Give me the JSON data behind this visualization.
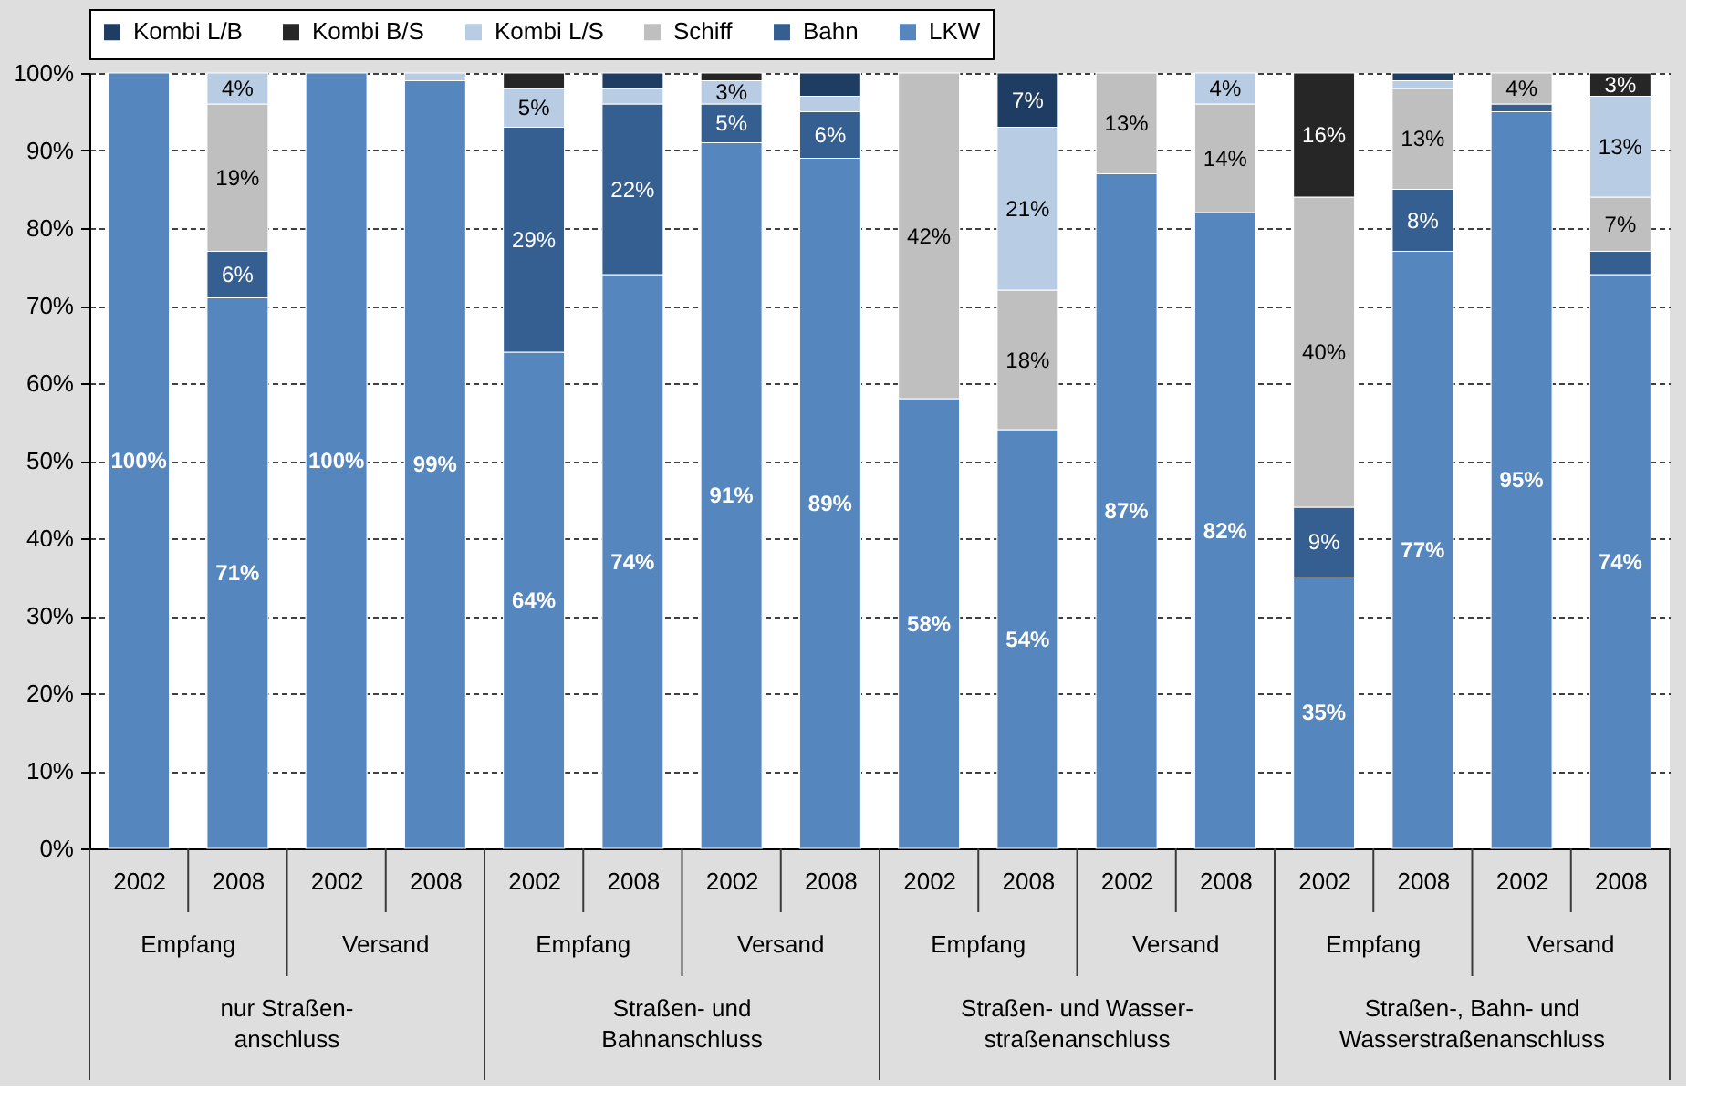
{
  "chart_data": {
    "type": "bar",
    "stacked": true,
    "categories": [
      "2002",
      "2008",
      "2002",
      "2008",
      "2002",
      "2008",
      "2002",
      "2008",
      "2002",
      "2008",
      "2002",
      "2008",
      "2002",
      "2008",
      "2002",
      "2008"
    ],
    "annotations": [
      "Empfang",
      "Versand",
      "Empfang",
      "Versand",
      "Empfang",
      "Versand",
      "Empfang",
      "Versand",
      "nur Straßen-\nanschluss",
      "Straßen- und\nBahnanschluss",
      "Straßen- und Wasser-\nstraßenanschluss",
      "Straßen-, Bahn- und\nWasserstraßenanschluss"
    ],
    "ylim": [
      0,
      100
    ],
    "yticks": [
      {
        "value": 0,
        "label": "0%"
      },
      {
        "value": 10,
        "label": "10%"
      },
      {
        "value": 20,
        "label": "20%"
      },
      {
        "value": 30,
        "label": "30%"
      },
      {
        "value": 40,
        "label": "40%"
      },
      {
        "value": 50,
        "label": "50%"
      },
      {
        "value": 60,
        "label": "60%"
      },
      {
        "value": 70,
        "label": "70%"
      },
      {
        "value": 80,
        "label": "80%"
      },
      {
        "value": 90,
        "label": "90%"
      },
      {
        "value": 100,
        "label": "100%"
      }
    ],
    "grid": "y",
    "legend": "top",
    "series": [
      {
        "name": "LKW",
        "color": "#5586be",
        "values": [
          100,
          71,
          100,
          99,
          64,
          74,
          91,
          89,
          58,
          54,
          87,
          82,
          35,
          77,
          95,
          74
        ],
        "value_labels": [
          "100%",
          "71%",
          "100%",
          "99%",
          "64%",
          "74%",
          "91%",
          "89%",
          "58%",
          "54%",
          "87%",
          "82%",
          "35%",
          "77%",
          "95%",
          "74%"
        ]
      },
      {
        "name": "Bahn",
        "color": "#365f91",
        "values": [
          null,
          6,
          null,
          null,
          29,
          22,
          5,
          6,
          null,
          null,
          null,
          null,
          9,
          8,
          1,
          3
        ],
        "value_labels": [
          null,
          "6%",
          null,
          null,
          "29%",
          "22%",
          "5%",
          "6%",
          null,
          null,
          null,
          null,
          "9%",
          "8%",
          null,
          null
        ]
      },
      {
        "name": "Schiff",
        "color": "#bfbfbf",
        "values": [
          null,
          19,
          null,
          null,
          null,
          null,
          null,
          null,
          42,
          18,
          13,
          14,
          40,
          13,
          4,
          7
        ],
        "value_labels": [
          null,
          "19%",
          null,
          null,
          null,
          null,
          null,
          null,
          "42%",
          "18%",
          "13%",
          "14%",
          "40%",
          "13%",
          "4%",
          "7%"
        ]
      },
      {
        "name": "Kombi L/S",
        "color": "#b8cce4",
        "values": [
          null,
          4,
          null,
          1,
          5,
          2,
          3,
          2,
          null,
          21,
          null,
          4,
          null,
          1,
          null,
          13
        ],
        "value_labels": [
          null,
          "4%",
          null,
          null,
          "5%",
          null,
          "3%",
          null,
          null,
          "21%",
          null,
          "4%",
          null,
          null,
          null,
          "13%"
        ]
      },
      {
        "name": "Kombi B/S",
        "color": "#262626",
        "values": [
          null,
          null,
          null,
          null,
          2,
          null,
          1,
          null,
          null,
          null,
          null,
          null,
          16,
          null,
          null,
          3
        ],
        "value_labels": [
          null,
          null,
          null,
          null,
          null,
          null,
          null,
          null,
          null,
          null,
          null,
          null,
          "16%",
          null,
          null,
          "3%"
        ]
      },
      {
        "name": "Kombi L/B",
        "color": "#1f3d63",
        "values": [
          null,
          null,
          null,
          null,
          null,
          2,
          null,
          3,
          null,
          7,
          null,
          null,
          null,
          1,
          null,
          null
        ],
        "value_labels": [
          null,
          null,
          null,
          null,
          null,
          null,
          null,
          null,
          null,
          "7%",
          null,
          null,
          null,
          null,
          null,
          null
        ]
      }
    ]
  }
}
